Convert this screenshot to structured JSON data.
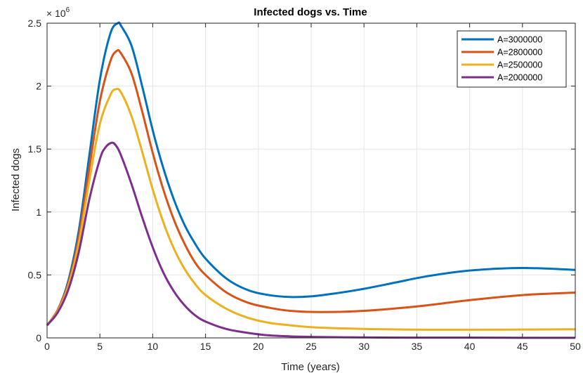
{
  "chart_data": {
    "type": "line",
    "title": "Infected dogs vs. Time",
    "xlabel": "Time (years)",
    "ylabel": "Infected dogs",
    "y_multiplier_base": "× 10",
    "y_multiplier_exp": "6",
    "xlim": [
      0,
      50
    ],
    "ylim": [
      0,
      2.5
    ],
    "xticks": [
      0,
      5,
      10,
      15,
      20,
      25,
      30,
      35,
      40,
      45,
      50
    ],
    "yticks": [
      0,
      0.5,
      1,
      1.5,
      2,
      2.5
    ],
    "ytick_labels": [
      "0",
      "0.5",
      "1",
      "1.5",
      "2",
      "2.5"
    ],
    "grid": true,
    "legend_position": "top-right",
    "series": [
      {
        "name": "A=3000000",
        "color": "#0072BD",
        "x": [
          0,
          1,
          2,
          3,
          4,
          5,
          6,
          6.7,
          7,
          8,
          9,
          10,
          11,
          12,
          13,
          14,
          15,
          17,
          19,
          21,
          23,
          25,
          27,
          30,
          33,
          36,
          40,
          45,
          50
        ],
        "y": [
          0.1,
          0.22,
          0.45,
          0.85,
          1.45,
          2.05,
          2.42,
          2.5,
          2.48,
          2.32,
          2.0,
          1.65,
          1.35,
          1.1,
          0.9,
          0.75,
          0.63,
          0.47,
          0.38,
          0.34,
          0.325,
          0.33,
          0.35,
          0.39,
          0.44,
          0.49,
          0.535,
          0.555,
          0.54
        ]
      },
      {
        "name": "A=2800000",
        "color": "#D95319",
        "x": [
          0,
          1,
          2,
          3,
          4,
          5,
          6,
          6.6,
          7,
          8,
          9,
          10,
          11,
          12,
          13,
          14,
          15,
          17,
          19,
          21,
          23,
          26,
          30,
          35,
          40,
          45,
          50
        ],
        "y": [
          0.1,
          0.22,
          0.43,
          0.8,
          1.35,
          1.88,
          2.2,
          2.28,
          2.26,
          2.1,
          1.8,
          1.47,
          1.18,
          0.94,
          0.75,
          0.6,
          0.5,
          0.36,
          0.28,
          0.24,
          0.215,
          0.205,
          0.215,
          0.25,
          0.3,
          0.34,
          0.36
        ]
      },
      {
        "name": "A=2500000",
        "color": "#EDB120",
        "x": [
          0,
          1,
          2,
          3,
          4,
          5,
          6,
          6.5,
          7,
          8,
          9,
          10,
          11,
          12,
          13,
          14,
          15,
          17,
          19,
          21,
          23,
          25,
          28,
          32,
          36,
          40,
          45,
          50
        ],
        "y": [
          0.1,
          0.21,
          0.41,
          0.75,
          1.25,
          1.7,
          1.93,
          1.975,
          1.95,
          1.76,
          1.48,
          1.18,
          0.92,
          0.71,
          0.55,
          0.43,
          0.34,
          0.23,
          0.16,
          0.12,
          0.1,
          0.085,
          0.075,
          0.068,
          0.065,
          0.065,
          0.066,
          0.068
        ]
      },
      {
        "name": "A=2000000",
        "color": "#7E2F8E",
        "x": [
          0,
          1,
          2,
          3,
          4,
          5,
          5.5,
          6.1,
          6.5,
          7,
          8,
          9,
          10,
          11,
          12,
          13,
          14,
          15,
          17,
          19,
          21,
          23,
          25,
          28,
          32,
          36,
          40,
          45,
          50
        ],
        "y": [
          0.1,
          0.2,
          0.38,
          0.68,
          1.1,
          1.42,
          1.51,
          1.55,
          1.53,
          1.45,
          1.22,
          0.96,
          0.72,
          0.52,
          0.37,
          0.26,
          0.18,
          0.13,
          0.07,
          0.04,
          0.02,
          0.012,
          0.008,
          0.005,
          0.003,
          0.002,
          0.002,
          0.001,
          0.001
        ]
      }
    ]
  }
}
